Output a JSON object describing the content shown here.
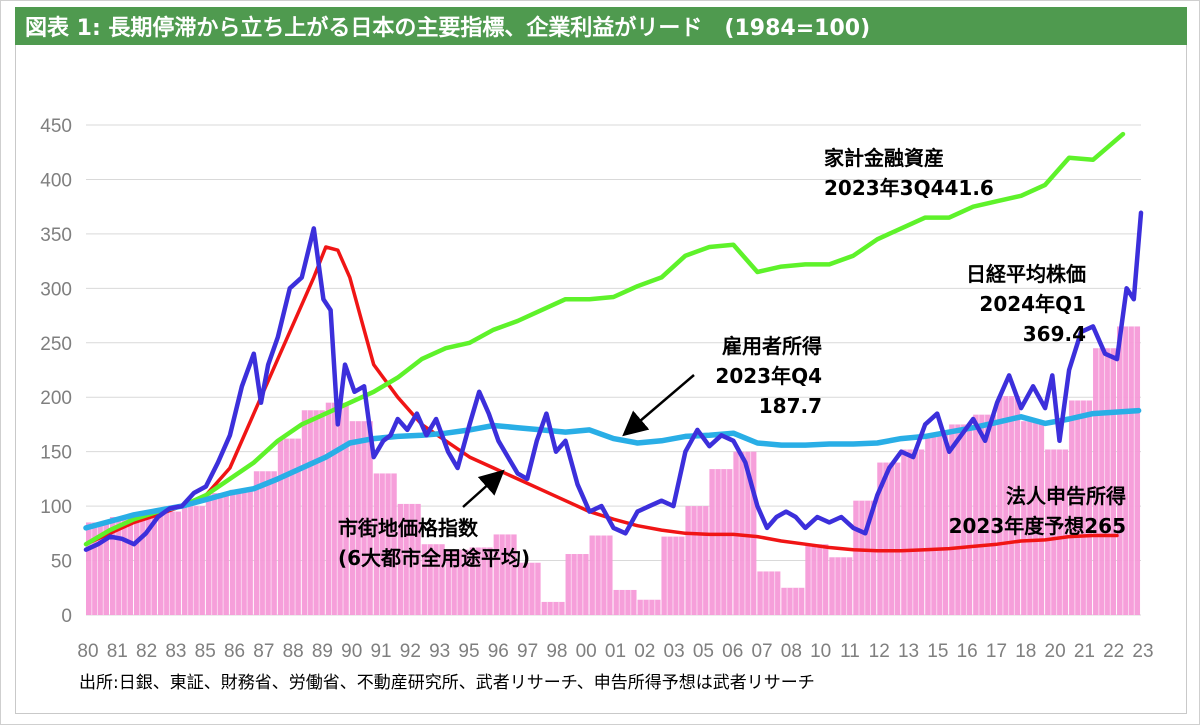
{
  "header": {
    "title": "図表 1: 長期停滞から立ち上がる日本の主要指標、企業利益がリード　(1984=100)"
  },
  "footer": {
    "source": "出所:日銀、東証、財務省、労働省、不動産研究所、武者リサーチ、申告所得予想は武者リサーチ"
  },
  "colors": {
    "title_bg": "#4f9a4f",
    "nikkei": "#3c2fdb",
    "land": "#f01515",
    "household": "#5ef22a",
    "employee": "#29aee6",
    "corporate": "#f59ad8"
  },
  "chart_data": {
    "type": "line",
    "title": "",
    "xlabel": "",
    "ylabel": "",
    "ylim": [
      0,
      450
    ],
    "yticks": [
      0,
      50,
      100,
      150,
      200,
      250,
      300,
      350,
      400,
      450
    ],
    "xlim": [
      1980,
      2024
    ],
    "xtick_labels": [
      "80",
      "81",
      "82",
      "83",
      "85",
      "86",
      "87",
      "88",
      "89",
      "90",
      "91",
      "92",
      "93",
      "95",
      "96",
      "97",
      "98",
      "00",
      "01",
      "02",
      "03",
      "05",
      "06",
      "07",
      "08",
      "10",
      "11",
      "12",
      "13",
      "15",
      "16",
      "17",
      "18",
      "20",
      "21",
      "22",
      "23"
    ],
    "grid": true,
    "series": [
      {
        "name": "法人申告所得",
        "kind": "bar",
        "color": "#f59ad8",
        "x": [
          1980,
          1981,
          1982,
          1983,
          1984,
          1985,
          1986,
          1987,
          1988,
          1989,
          1990,
          1991,
          1992,
          1993,
          1994,
          1995,
          1996,
          1997,
          1998,
          1999,
          2000,
          2001,
          2002,
          2003,
          2004,
          2005,
          2006,
          2007,
          2008,
          2009,
          2010,
          2011,
          2012,
          2013,
          2014,
          2015,
          2016,
          2017,
          2018,
          2019,
          2020,
          2021,
          2022,
          2023
        ],
        "y": [
          85,
          90,
          92,
          95,
          100,
          112,
          115,
          132,
          162,
          188,
          195,
          178,
          130,
          102,
          65,
          60,
          62,
          74,
          48,
          12,
          56,
          73,
          23,
          14,
          72,
          100,
          134,
          150,
          40,
          25,
          65,
          53,
          105,
          140,
          152,
          166,
          175,
          184,
          201,
          178,
          152,
          197,
          245,
          265
        ]
      },
      {
        "name": "日経平均株価",
        "color": "#3c2fdb",
        "x": [
          1980,
          1980.5,
          1981,
          1981.5,
          1982,
          1982.5,
          1983,
          1983.5,
          1984,
          1984.5,
          1985,
          1985.5,
          1986,
          1986.5,
          1987,
          1987.3,
          1987.6,
          1988,
          1988.5,
          1989,
          1989.5,
          1989.9,
          1990.2,
          1990.5,
          1990.8,
          1991.2,
          1991.6,
          1992,
          1992.4,
          1992.7,
          1993,
          1993.4,
          1993.8,
          1994.2,
          1994.6,
          1995.1,
          1995.5,
          1996,
          1996.4,
          1996.8,
          1997.2,
          1997.6,
          1998,
          1998.4,
          1998.8,
          1999.2,
          1999.6,
          2000,
          2000.5,
          2001,
          2001.5,
          2002,
          2002.5,
          2003,
          2003.5,
          2004,
          2004.5,
          2005,
          2005.5,
          2006,
          2006.5,
          2007,
          2007.5,
          2008,
          2008.4,
          2008.8,
          2009.2,
          2009.6,
          2010,
          2010.5,
          2011,
          2011.5,
          2012,
          2012.5,
          2013,
          2013.5,
          2014,
          2014.5,
          2015,
          2015.5,
          2016,
          2016.5,
          2017,
          2017.5,
          2018,
          2018.5,
          2019,
          2019.5,
          2020,
          2020.3,
          2020.6,
          2021,
          2021.5,
          2022,
          2022.5,
          2023,
          2023.4,
          2023.7,
          2024
        ],
        "y": [
          60,
          65,
          72,
          70,
          65,
          75,
          90,
          98,
          100,
          112,
          118,
          140,
          165,
          210,
          240,
          195,
          230,
          255,
          300,
          310,
          355,
          290,
          280,
          175,
          230,
          205,
          210,
          145,
          160,
          165,
          180,
          170,
          185,
          165,
          180,
          150,
          135,
          175,
          205,
          185,
          160,
          145,
          130,
          125,
          160,
          185,
          150,
          160,
          120,
          95,
          100,
          80,
          75,
          95,
          100,
          105,
          100,
          150,
          170,
          155,
          165,
          160,
          140,
          100,
          80,
          90,
          95,
          90,
          80,
          90,
          85,
          90,
          80,
          75,
          110,
          135,
          150,
          145,
          175,
          185,
          150,
          165,
          180,
          160,
          195,
          220,
          190,
          210,
          190,
          220,
          160,
          225,
          260,
          265,
          240,
          235,
          300,
          290,
          369.4
        ]
      },
      {
        "name": "市街地価格指数(6大都市全用途平均)",
        "color": "#f01515",
        "x": [
          1980,
          1981,
          1982,
          1983,
          1984,
          1985,
          1986,
          1987,
          1988,
          1989,
          1989.5,
          1990,
          1990.5,
          1991,
          1991.5,
          1992,
          1993,
          1994,
          1995,
          1996,
          1997,
          1998,
          1999,
          2000,
          2001,
          2002,
          2003,
          2004,
          2005,
          2006,
          2007,
          2008,
          2009,
          2010,
          2011,
          2012,
          2013,
          2014,
          2015,
          2016,
          2017,
          2018,
          2019,
          2020,
          2021,
          2022,
          2023
        ],
        "y": [
          65,
          75,
          85,
          92,
          100,
          110,
          135,
          185,
          235,
          285,
          310,
          338,
          335,
          310,
          270,
          230,
          200,
          175,
          160,
          145,
          135,
          125,
          115,
          105,
          95,
          88,
          82,
          78,
          75,
          74,
          74,
          72,
          68,
          65,
          62,
          60,
          59,
          59,
          60,
          61,
          63,
          65,
          68,
          69,
          72,
          73,
          73
        ]
      },
      {
        "name": "家計金融資産",
        "color": "#5ef22a",
        "x": [
          1980,
          1981,
          1982,
          1983,
          1984,
          1985,
          1986,
          1987,
          1988,
          1989,
          1990,
          1991,
          1992,
          1993,
          1994,
          1995,
          1996,
          1997,
          1998,
          1999,
          2000,
          2001,
          2002,
          2003,
          2004,
          2005,
          2006,
          2007,
          2008,
          2009,
          2010,
          2011,
          2012,
          2013,
          2014,
          2015,
          2016,
          2017,
          2018,
          2019,
          2020,
          2021,
          2022,
          2023.25
        ],
        "y": [
          65,
          78,
          88,
          95,
          100,
          110,
          125,
          140,
          160,
          175,
          185,
          195,
          205,
          218,
          235,
          245,
          250,
          262,
          270,
          280,
          290,
          290,
          292,
          302,
          310,
          330,
          338,
          340,
          315,
          320,
          322,
          322,
          330,
          345,
          355,
          365,
          365,
          375,
          380,
          385,
          395,
          420,
          418,
          441.6
        ]
      },
      {
        "name": "雇用者所得",
        "color": "#29aee6",
        "x": [
          1980,
          1981,
          1982,
          1983,
          1984,
          1985,
          1986,
          1987,
          1988,
          1989,
          1990,
          1991,
          1992,
          1993,
          1994,
          1995,
          1996,
          1997,
          1998,
          1999,
          2000,
          2001,
          2002,
          2003,
          2004,
          2005,
          2006,
          2007,
          2008,
          2009,
          2010,
          2011,
          2012,
          2013,
          2014,
          2015,
          2016,
          2017,
          2018,
          2019,
          2020,
          2021,
          2022,
          2023.9
        ],
        "y": [
          80,
          86,
          92,
          96,
          100,
          106,
          112,
          116,
          125,
          135,
          145,
          158,
          162,
          164,
          165,
          167,
          170,
          174,
          172,
          170,
          168,
          170,
          162,
          158,
          160,
          164,
          165,
          167,
          158,
          156,
          156,
          157,
          157,
          158,
          162,
          164,
          168,
          172,
          177,
          182,
          176,
          180,
          185,
          187.7
        ]
      }
    ],
    "annotations": [
      {
        "text_lines": [
          "家計金融資産",
          "2023年3Q441.6"
        ]
      },
      {
        "text_lines": [
          "日経平均株価",
          "2024年Q1",
          "369.4"
        ]
      },
      {
        "text_lines": [
          "雇用者所得",
          "2023年Q4",
          "187.7"
        ]
      },
      {
        "text_lines": [
          "市街地価格指数",
          "(6大都市全用途平均)"
        ]
      },
      {
        "text_lines": [
          "法人申告所得",
          "2023年度予想265"
        ]
      }
    ]
  }
}
